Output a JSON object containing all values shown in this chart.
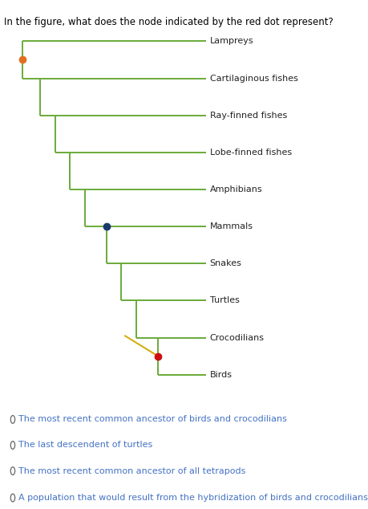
{
  "title": "In the figure, what does the node indicated by the red dot represent?",
  "title_color": "#000000",
  "title_fontsize": 8.5,
  "background_color": "#ffffff",
  "tree_color": "#6aaa3a",
  "taxa": [
    "Lampreys",
    "Cartilaginous fishes",
    "Ray-finned fishes",
    "Lobe-finned fishes",
    "Amphibians",
    "Mammals",
    "Snakes",
    "Turtles",
    "Crocodilians",
    "Birds"
  ],
  "label_fontsize": 8.0,
  "orange_dot_color": "#e07020",
  "blue_dot_color": "#1a3a6e",
  "red_dot_color": "#cc1010",
  "dot_size": 6,
  "yellow_line_color": "#d4aa00",
  "choices_text": [
    "The most recent common ancestor of birds and crocodilians",
    "The last descendent of turtles",
    "The most recent common ancestor of all tetrapods",
    "A population that would result from the hybridization of birds and crocodilians"
  ],
  "choice_fontsize": 8.0,
  "choice_color": "#4472c4"
}
